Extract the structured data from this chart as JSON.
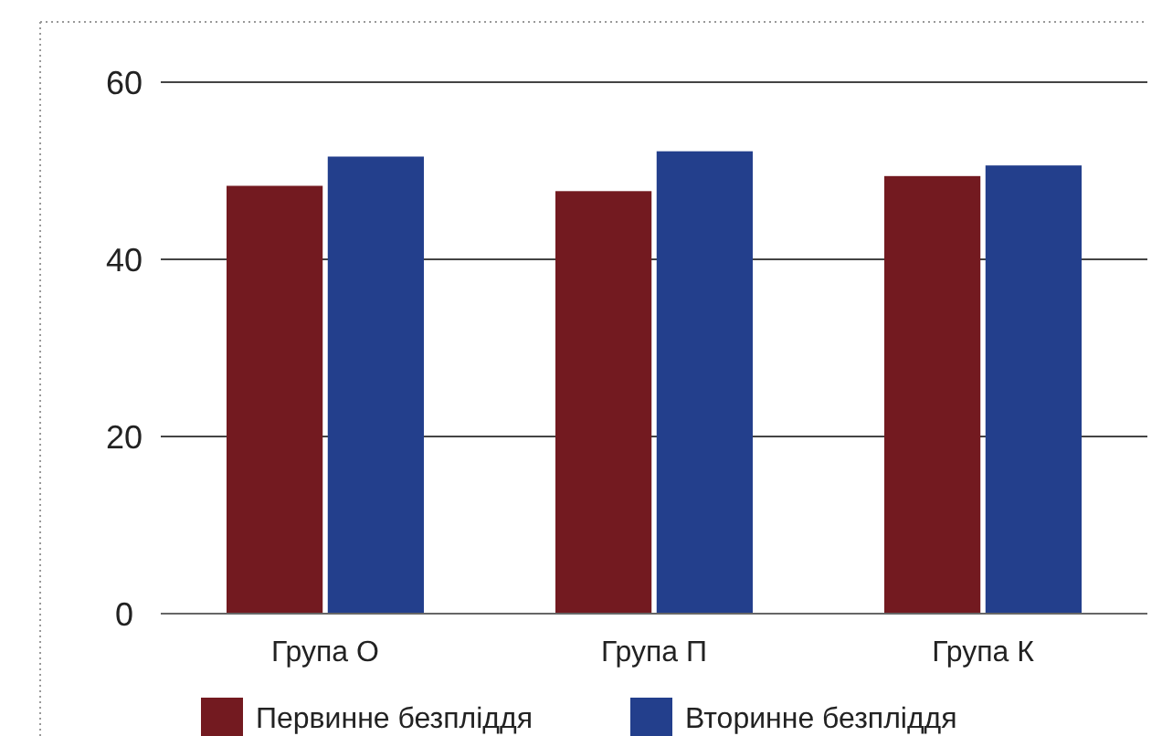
{
  "chart_data": {
    "type": "bar",
    "categories": [
      "Група О",
      "Група П",
      "Група К"
    ],
    "series": [
      {
        "name": "Первинне безпліддя",
        "color": "#731a20",
        "values": [
          48.3,
          47.7,
          49.4
        ]
      },
      {
        "name": "Вторинне безпліддя",
        "color": "#233f8c",
        "values": [
          51.6,
          52.2,
          50.6
        ]
      }
    ],
    "ylim": [
      0,
      60
    ],
    "yticks": [
      0,
      20,
      40,
      60
    ],
    "grid": "y",
    "legend": "bottom"
  }
}
